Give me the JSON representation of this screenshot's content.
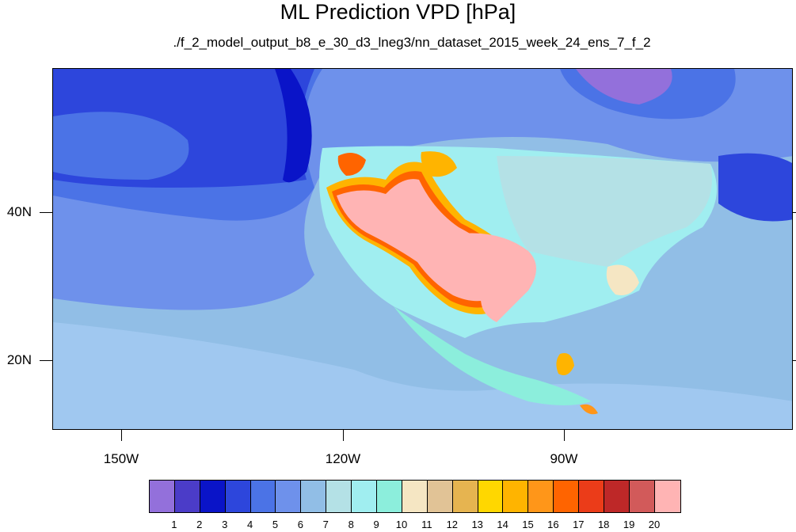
{
  "title": "ML Prediction VPD [hPa]",
  "subtitle": "./f_2_model_output_b8_e_30_d3_lneg3/nn_dataset_2015_week_24_ens_7_f_2",
  "lat_labels": [
    "40N",
    "20N"
  ],
  "lon_labels": [
    "150W",
    "120W",
    "90W"
  ],
  "colorbar": {
    "colors": [
      "#9370db",
      "#4b3cc8",
      "#0a14c8",
      "#2d46dc",
      "#4b73e6",
      "#6e91eb",
      "#91bee6",
      "#b4e1e6",
      "#a0eef0",
      "#8ceedc",
      "#f5e6c3",
      "#e1c396",
      "#e6b450",
      "#ffd700",
      "#ffb400",
      "#ff9619",
      "#ff6400",
      "#eb3c19",
      "#be2828",
      "#d25a5a",
      "#ffb4b4"
    ],
    "labels": [
      "1",
      "2",
      "3",
      "4",
      "5",
      "6",
      "7",
      "8",
      "9",
      "10",
      "11",
      "12",
      "13",
      "14",
      "15",
      "16",
      "17",
      "18",
      "19",
      "20"
    ]
  }
}
